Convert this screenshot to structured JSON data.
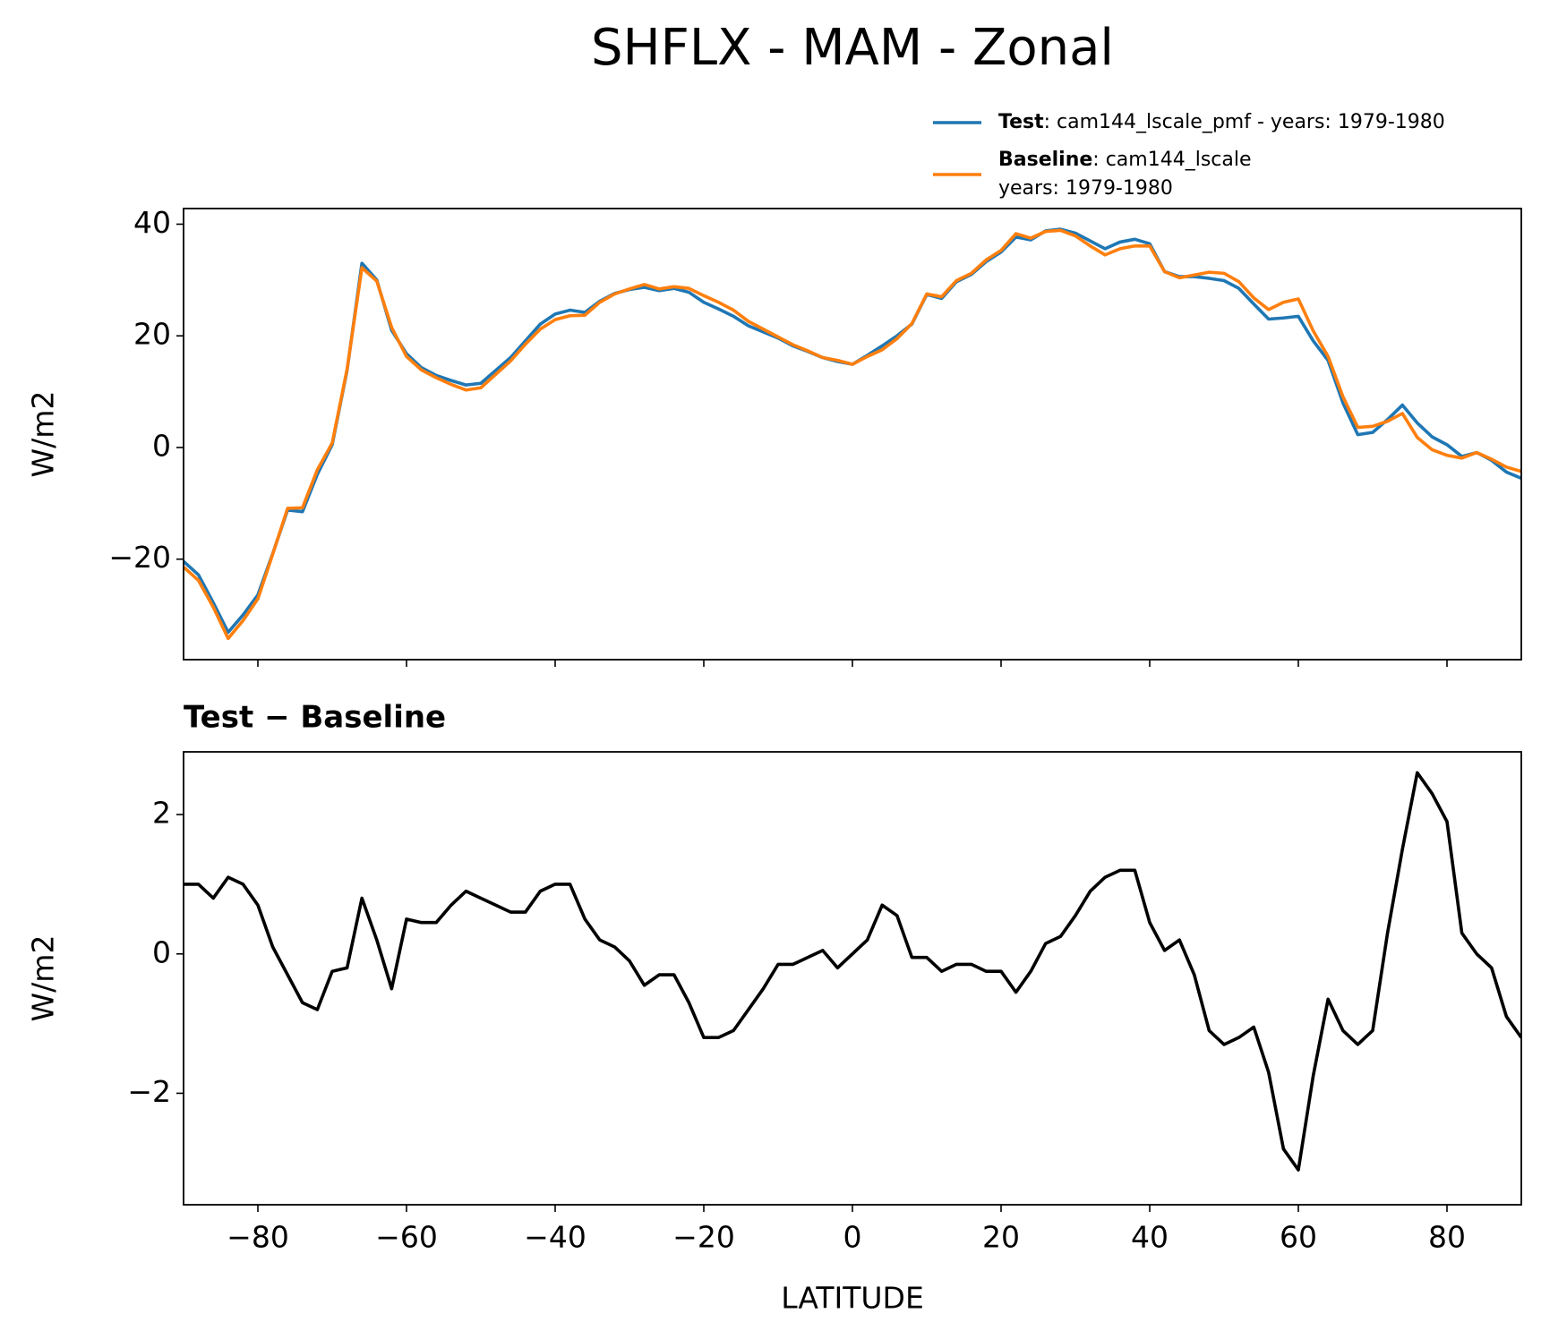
{
  "title": "SHFLX - MAM - Zonal",
  "chart_data": [
    {
      "type": "line",
      "ylabel": "W/m2",
      "x": [
        -90,
        -88,
        -86,
        -84,
        -82,
        -80,
        -78,
        -76,
        -74,
        -72,
        -70,
        -68,
        -66,
        -64,
        -62,
        -60,
        -58,
        -56,
        -54,
        -52,
        -50,
        -48,
        -46,
        -44,
        -42,
        -40,
        -38,
        -36,
        -34,
        -32,
        -30,
        -28,
        -26,
        -24,
        -22,
        -20,
        -18,
        -16,
        -14,
        -12,
        -10,
        -8,
        -6,
        -4,
        -2,
        0,
        2,
        4,
        6,
        8,
        10,
        12,
        14,
        16,
        18,
        20,
        22,
        24,
        26,
        28,
        30,
        32,
        34,
        36,
        38,
        40,
        42,
        44,
        46,
        48,
        50,
        52,
        54,
        56,
        58,
        60,
        62,
        64,
        66,
        68,
        70,
        72,
        74,
        76,
        78,
        80,
        82,
        84,
        86,
        88,
        90
      ],
      "series": [
        {
          "name": "Test",
          "description": ": cam144_lscale_pmf - years: 1979-1980",
          "color": "#1f77b4",
          "values": [
            -20.4,
            -22.8,
            -27.8,
            -33.1,
            -30,
            -26.4,
            -19,
            -11.2,
            -11.5,
            -4.8,
            0.5,
            13.8,
            33,
            30,
            21,
            16.8,
            14.3,
            12.9,
            12,
            11.2,
            11.5,
            13.8,
            16.1,
            19.1,
            22.1,
            23.9,
            24.6,
            24.2,
            26.2,
            27.6,
            28.3,
            28.7,
            28.1,
            28.5,
            27.8,
            26,
            24.8,
            23.5,
            21.8,
            20.7,
            19.6,
            18.2,
            17.2,
            16.1,
            15.4,
            14.9,
            16.5,
            18.2,
            20,
            22.1,
            27.4,
            26.7,
            29.7,
            31,
            33.3,
            35,
            37.7,
            37.2,
            38.8,
            39.1,
            38.4,
            37,
            35.6,
            36.8,
            37.3,
            36.5,
            31.5,
            30.6,
            30.6,
            30.3,
            29.9,
            28.5,
            25.7,
            23,
            23.2,
            23.5,
            19.1,
            15.6,
            8,
            2.3,
            2.7,
            5,
            7.6,
            4.4,
            1.9,
            0.5,
            -1.6,
            -0.9,
            -2.3,
            -4.4,
            -5.5
          ]
        },
        {
          "name": "Baseline",
          "description": [
            ": cam144_lscale",
            "years: 1979-1980"
          ],
          "color": "#ff7f0e",
          "values": [
            -21.4,
            -23.8,
            -28.6,
            -34.2,
            -31,
            -27.1,
            -19.1,
            -10.9,
            -10.8,
            -4,
            0.8,
            14,
            32.2,
            29.8,
            21.5,
            16.3,
            13.9,
            12.5,
            11.3,
            10.3,
            10.7,
            13.1,
            15.5,
            18.5,
            21.2,
            22.9,
            23.6,
            23.7,
            26,
            27.5,
            28.4,
            29.2,
            28.4,
            28.8,
            28.5,
            27.2,
            26,
            24.6,
            22.6,
            21.2,
            19.8,
            18.4,
            17.3,
            16.1,
            15.6,
            14.9,
            16.3,
            17.5,
            19.5,
            22.2,
            27.5,
            27,
            29.9,
            31.2,
            33.6,
            35.3,
            38.3,
            37.5,
            38.7,
            38.9,
            37.9,
            36.1,
            34.5,
            35.6,
            36.1,
            36.1,
            31.5,
            30.4,
            30.9,
            31.4,
            31.2,
            29.7,
            26.8,
            24.7,
            26,
            26.6,
            20.9,
            16.3,
            9.1,
            3.6,
            3.8,
            4.7,
            6.1,
            1.8,
            -0.4,
            -1.4,
            -1.9,
            -0.9,
            -2.1,
            -3.5,
            -4.3
          ]
        }
      ],
      "xlim": [
        -90,
        90
      ],
      "xticks": [
        -80,
        -60,
        -40,
        -20,
        0,
        20,
        40,
        60,
        80
      ],
      "ylim": [
        -38,
        42.8
      ],
      "yticks": [
        {
          "value": -20,
          "label": "−20"
        },
        0,
        20,
        40
      ]
    },
    {
      "type": "line",
      "title": "Test − Baseline",
      "xlabel": "LATITUDE",
      "ylabel": "W/m2",
      "x": [
        -90,
        -88,
        -86,
        -84,
        -82,
        -80,
        -78,
        -76,
        -74,
        -72,
        -70,
        -68,
        -66,
        -64,
        -62,
        -60,
        -58,
        -56,
        -54,
        -52,
        -50,
        -48,
        -46,
        -44,
        -42,
        -40,
        -38,
        -36,
        -34,
        -32,
        -30,
        -28,
        -26,
        -24,
        -22,
        -20,
        -18,
        -16,
        -14,
        -12,
        -10,
        -8,
        -6,
        -4,
        -2,
        0,
        2,
        4,
        6,
        8,
        10,
        12,
        14,
        16,
        18,
        20,
        22,
        24,
        26,
        28,
        30,
        32,
        34,
        36,
        38,
        40,
        42,
        44,
        46,
        48,
        50,
        52,
        54,
        56,
        58,
        60,
        62,
        64,
        66,
        68,
        70,
        72,
        74,
        76,
        78,
        80,
        82,
        84,
        86,
        88,
        90
      ],
      "series": [
        {
          "color": "#000000",
          "values": [
            1,
            1,
            0.8,
            1.1,
            1,
            0.7,
            0.1,
            -0.3,
            -0.7,
            -0.8,
            -0.25,
            -0.2,
            0.8,
            0.2,
            -0.5,
            0.5,
            0.45,
            0.45,
            0.7,
            0.9,
            0.8,
            0.7,
            0.6,
            0.6,
            0.9,
            1,
            1,
            0.5,
            0.2,
            0.1,
            -0.1,
            -0.45,
            -0.3,
            -0.3,
            -0.7,
            -1.2,
            -1.2,
            -1.1,
            -0.8,
            -0.5,
            -0.15,
            -0.15,
            -0.05,
            0.05,
            -0.2,
            0,
            0.2,
            0.7,
            0.55,
            -0.05,
            -0.05,
            -0.25,
            -0.15,
            -0.15,
            -0.25,
            -0.25,
            -0.55,
            -0.25,
            0.15,
            0.25,
            0.55,
            0.9,
            1.1,
            1.2,
            1.2,
            0.45,
            0.05,
            0.2,
            -0.3,
            -1.1,
            -1.3,
            -1.2,
            -1.05,
            -1.7,
            -2.8,
            -3.1,
            -1.75,
            -0.65,
            -1.1,
            -1.3,
            -1.1,
            0.3,
            1.5,
            2.6,
            2.3,
            1.9,
            0.3,
            0,
            -0.2,
            -0.9,
            -1.2
          ]
        }
      ],
      "xlim": [
        -90,
        90
      ],
      "xticks": [
        {
          "value": -80,
          "label": "−80"
        },
        {
          "value": -60,
          "label": "−60"
        },
        {
          "value": -40,
          "label": "−40"
        },
        {
          "value": -20,
          "label": "−20"
        },
        0,
        20,
        40,
        60,
        80
      ],
      "ylim": [
        -3.6,
        2.9
      ],
      "yticks": [
        {
          "value": -2,
          "label": "−2"
        },
        0,
        2
      ]
    }
  ]
}
